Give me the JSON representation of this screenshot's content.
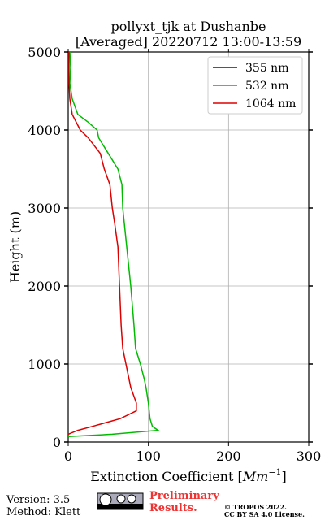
{
  "chart_data": {
    "type": "line",
    "title": [
      "pollyxt_tjk at Dushanbe",
      "[Averaged] 20220712 13:00-13:59"
    ],
    "xlabel": [
      "Extinction Coefficient [",
      "Mm",
      "−1",
      "]"
    ],
    "ylabel": "Height (m)",
    "y": [
      70,
      100,
      150,
      200,
      300,
      400,
      500,
      700,
      800,
      1000,
      1200,
      1500,
      2000,
      2500,
      2800,
      3000,
      3300,
      3500,
      3700,
      3900,
      4000,
      4100,
      4200,
      4400,
      4600,
      4800,
      5000
    ],
    "series": [
      {
        "name": "355 nm",
        "color": "#0000ff",
        "values": [
          null,
          null,
          null,
          null,
          null,
          null,
          null,
          null,
          null,
          null,
          null,
          null,
          null,
          null,
          null,
          null,
          null,
          null,
          null,
          null,
          null,
          null,
          null,
          null,
          null,
          null,
          null
        ]
      },
      {
        "name": "532 nm",
        "color": "#00bb00",
        "values": [
          0,
          55,
          112,
          105,
          102,
          101,
          100,
          97,
          95,
          90,
          84,
          82,
          78,
          73,
          70,
          68,
          67,
          62,
          50,
          38,
          36,
          25,
          12,
          5,
          2,
          3,
          2
        ]
      },
      {
        "name": "1064 nm",
        "color": "#dd0000",
        "values": [
          null,
          0,
          12,
          30,
          65,
          85,
          85,
          78,
          76,
          72,
          68,
          66,
          64,
          62,
          58,
          55,
          52,
          45,
          40,
          25,
          15,
          10,
          5,
          2,
          1,
          1,
          1
        ]
      }
    ],
    "xlim": [
      0,
      300
    ],
    "xticks": [
      0,
      100,
      200,
      300
    ],
    "ylim": [
      0,
      5000
    ],
    "yticks": [
      0,
      1000,
      2000,
      3000,
      4000,
      5000
    ],
    "grid": true,
    "legend": "upper right",
    "footer": {
      "version": "Version: 3.5",
      "method": "Method: Klett",
      "preliminary": [
        "Preliminary",
        "Results."
      ],
      "copyright": [
        "© TROPOS 2022.",
        "CC BY SA 4.0 License."
      ]
    }
  }
}
